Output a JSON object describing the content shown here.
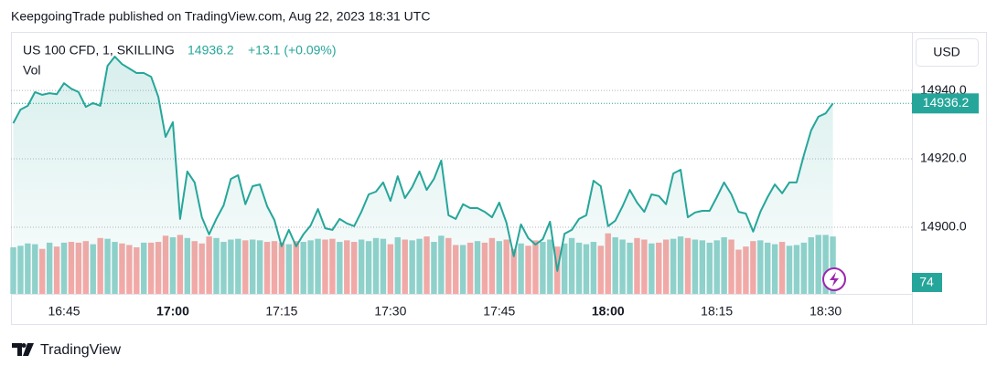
{
  "header": "KeepgoingTrade published on TradingView.com, Aug 22, 2023 18:31 UTC",
  "footer": "TradingView",
  "chart_data": {
    "type": "line",
    "title": "US 100 CFD, 1, SKILLING",
    "change": "+13.1 (+0.09%)",
    "currency": "USD",
    "categories": [
      "16:38",
      "16:39",
      "16:40",
      "16:41",
      "16:42",
      "16:43",
      "16:44",
      "16:45",
      "16:46",
      "16:47",
      "16:48",
      "16:49",
      "16:50",
      "16:51",
      "16:52",
      "16:53",
      "16:54",
      "16:55",
      "16:56",
      "16:57",
      "16:58",
      "16:59",
      "17:00",
      "17:01",
      "17:02",
      "17:03",
      "17:04",
      "17:05",
      "17:06",
      "17:07",
      "17:08",
      "17:09",
      "17:10",
      "17:11",
      "17:12",
      "17:13",
      "17:14",
      "17:15",
      "17:16",
      "17:17",
      "17:18",
      "17:19",
      "17:20",
      "17:21",
      "17:22",
      "17:23",
      "17:24",
      "17:25",
      "17:26",
      "17:27",
      "17:28",
      "17:29",
      "17:30",
      "17:31",
      "17:32",
      "17:33",
      "17:34",
      "17:35",
      "17:36",
      "17:37",
      "17:38",
      "17:39",
      "17:40",
      "17:41",
      "17:42",
      "17:43",
      "17:44",
      "17:45",
      "17:46",
      "17:47",
      "17:48",
      "17:49",
      "17:50",
      "17:51",
      "17:52",
      "17:53",
      "17:54",
      "17:55",
      "17:56",
      "17:57",
      "17:58",
      "17:59",
      "18:00",
      "18:01",
      "18:02",
      "18:03",
      "18:04",
      "18:05",
      "18:06",
      "18:07",
      "18:08",
      "18:09",
      "18:10",
      "18:11",
      "18:12",
      "18:13",
      "18:14",
      "18:15",
      "18:16",
      "18:17",
      "18:18",
      "18:19",
      "18:20",
      "18:21",
      "18:22",
      "18:23",
      "18:24",
      "18:25",
      "18:26",
      "18:27",
      "18:28",
      "18:29",
      "18:30",
      "18:31"
    ],
    "xticks": [
      "16:45",
      "17:00",
      "17:15",
      "17:30",
      "17:45",
      "18:00",
      "18:15",
      "18:30"
    ],
    "ylim": [
      14880.5,
      14957.1
    ],
    "yticks": [
      {
        "value": 14900,
        "label": "14900.0"
      },
      {
        "value": 14920,
        "label": "14920.0"
      },
      {
        "value": 14940,
        "label": "14940.0"
      }
    ],
    "grid": true,
    "series": [
      {
        "color": "#26a69a",
        "values": [
          14930.4,
          14934.4,
          14935.5,
          14939.5,
          14938.7,
          14939.2,
          14938.9,
          14942.1,
          14940.5,
          14939.5,
          14935.2,
          14936.3,
          14935.5,
          14947.2,
          14949.9,
          14947.7,
          14946.4,
          14945.1,
          14945.1,
          14944.0,
          14938.1,
          14926.4,
          14930.7,
          14902.4,
          14916.3,
          14913.1,
          14902.9,
          14897.9,
          14902.4,
          14906.4,
          14914.1,
          14915.2,
          14906.7,
          14912.0,
          14912.5,
          14906.1,
          14902.1,
          14894.4,
          14899.2,
          14894.4,
          14897.9,
          14900.5,
          14905.3,
          14899.7,
          14899.2,
          14902.4,
          14901.1,
          14900.3,
          14904.5,
          14909.6,
          14910.4,
          14913.1,
          14907.7,
          14914.9,
          14908.5,
          14911.7,
          14916.3,
          14910.9,
          14914.1,
          14919.5,
          14903.5,
          14902.4,
          14906.7,
          14905.6,
          14905.6,
          14904.5,
          14902.9,
          14907.2,
          14901.3,
          14891.5,
          14900.8,
          14896.8,
          14894.9,
          14896.5,
          14901.6,
          14887.2,
          14898.1,
          14899.2,
          14902.4,
          14903.5,
          14913.6,
          14912.0,
          14900.3,
          14901.9,
          14906.1,
          14910.9,
          14907.2,
          14904.5,
          14909.6,
          14909.1,
          14906.7,
          14915.7,
          14916.8,
          14902.9,
          14904.3,
          14904.8,
          14904.8,
          14908.8,
          14913.1,
          14909.6,
          14904.5,
          14904.0,
          14898.7,
          14904.5,
          14908.8,
          14912.5,
          14909.9,
          14913.1,
          14913.1,
          14921.1,
          14928.3,
          14932.3,
          14933.3,
          14936.2
        ]
      },
      {
        "name": "Vol",
        "up_color": "#92d2cc",
        "down_color": "#f7a9a7",
        "values": [
          60,
          62,
          65,
          64,
          58,
          66,
          61,
          66,
          67,
          66,
          68,
          64,
          72,
          71,
          67,
          65,
          63,
          60,
          66,
          66,
          67,
          75,
          73,
          76,
          72,
          68,
          65,
          74,
          72,
          67,
          70,
          71,
          69,
          70,
          69,
          67,
          68,
          66,
          64,
          68,
          67,
          69,
          71,
          70,
          71,
          67,
          69,
          67,
          70,
          68,
          72,
          71,
          64,
          73,
          70,
          69,
          71,
          74,
          67,
          75,
          72,
          63,
          63,
          66,
          68,
          66,
          72,
          68,
          70,
          58,
          65,
          62,
          69,
          67,
          70,
          61,
          65,
          72,
          66,
          64,
          67,
          62,
          78,
          73,
          70,
          66,
          72,
          70,
          65,
          66,
          70,
          71,
          74,
          72,
          70,
          69,
          66,
          69,
          73,
          70,
          57,
          61,
          68,
          69,
          66,
          64,
          67,
          62,
          63,
          66,
          73,
          76,
          76,
          74
        ]
      }
    ]
  }
}
